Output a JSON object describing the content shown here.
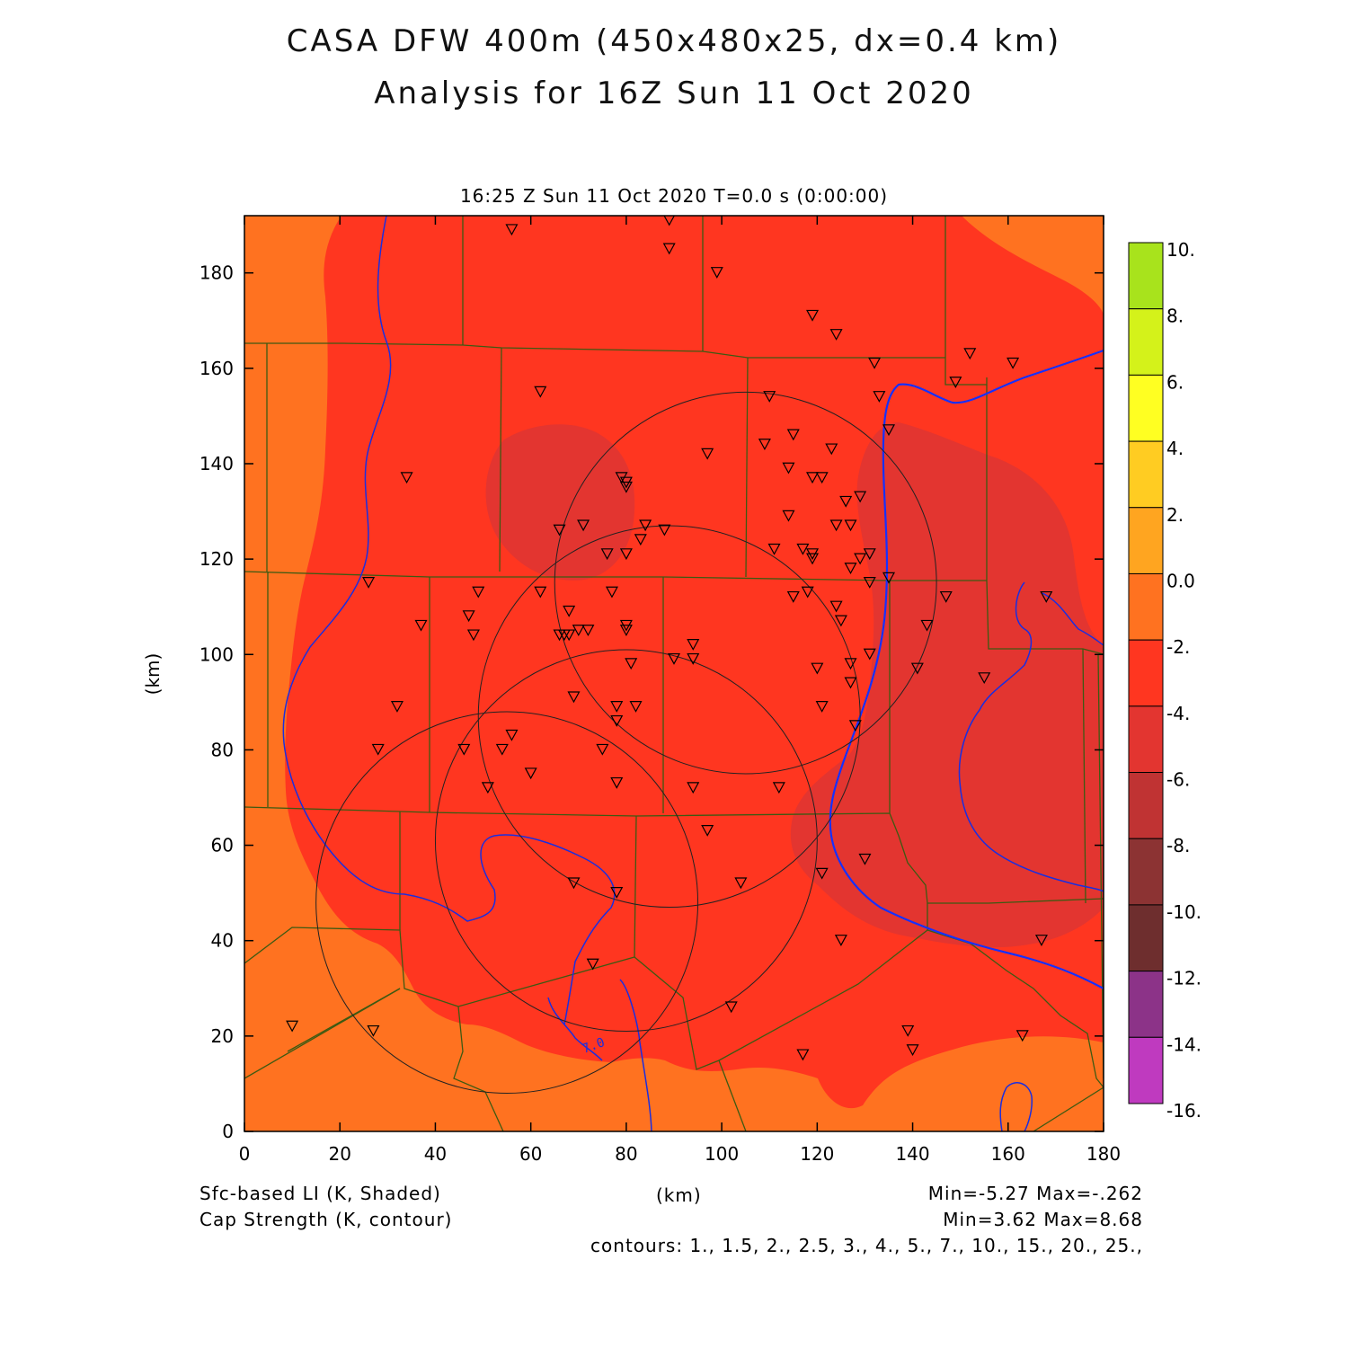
{
  "title": {
    "line1": "CASA DFW 400m (450x480x25, dx=0.4 km)",
    "line2": "Analysis for 16Z Sun 11 Oct 2020"
  },
  "subtitle": "16:25 Z Sun 11 Oct 2020   T=0.0 s (0:00:00)",
  "x_axis": {
    "label": "(km)",
    "ticks": [
      "0",
      "20",
      "40",
      "60",
      "80",
      "100",
      "120",
      "140",
      "160",
      "180"
    ]
  },
  "y_axis": {
    "label": "(km)",
    "ticks": [
      "0",
      "20",
      "40",
      "60",
      "80",
      "100",
      "120",
      "140",
      "160",
      "180"
    ]
  },
  "colorbar": {
    "labels": [
      "10.",
      "8.",
      "6.",
      "4.",
      "2.",
      "0.0",
      "-2.",
      "-4.",
      "-6.",
      "-8.",
      "-10.",
      "-12.",
      "-14.",
      "-16."
    ],
    "colors": [
      "#a8e31c",
      "#d4f21a",
      "#ffff22",
      "#ffcc22",
      "#ffa520",
      "#ff7220",
      "#ff3620",
      "#e33530",
      "#c03333",
      "#8c3333",
      "#6e2e2e",
      "#8c3388",
      "#bf3abf",
      "#dd3adc"
    ]
  },
  "footer": {
    "field1_label": "Sfc-based LI (K, Shaded)",
    "field1_range": "Min=-5.27 Max=-.262",
    "field2_label": "Cap Strength (K, contour)",
    "field2_range": "Min=3.62 Max=8.68",
    "contours": "contours: 1., 1.5, 2., 2.5, 3., 4., 5., 7., 10., 15., 20., 25.,",
    "xunit": "(km)"
  },
  "contour_label": "7.0",
  "map": {
    "radar_circles_km": [
      {
        "cx": 105,
        "cy": 115,
        "r": 40
      },
      {
        "cx": 89,
        "cy": 87,
        "r": 40
      },
      {
        "cx": 80,
        "cy": 61,
        "r": 40
      },
      {
        "cx": 55,
        "cy": 48,
        "r": 40
      }
    ],
    "stations_km": [
      [
        89,
        191
      ],
      [
        56,
        189
      ],
      [
        89,
        185
      ],
      [
        99,
        180
      ],
      [
        119,
        171
      ],
      [
        124,
        167
      ],
      [
        152,
        163
      ],
      [
        161,
        161
      ],
      [
        132,
        161
      ],
      [
        149,
        157
      ],
      [
        62,
        155
      ],
      [
        110,
        154
      ],
      [
        133,
        154
      ],
      [
        135,
        147
      ],
      [
        115,
        146
      ],
      [
        109,
        144
      ],
      [
        97,
        142
      ],
      [
        123,
        143
      ],
      [
        34,
        137
      ],
      [
        79,
        137
      ],
      [
        80,
        135
      ],
      [
        80,
        136
      ],
      [
        114,
        139
      ],
      [
        119,
        137
      ],
      [
        121,
        137
      ],
      [
        126,
        132
      ],
      [
        129,
        133
      ],
      [
        114,
        129
      ],
      [
        66,
        126
      ],
      [
        71,
        127
      ],
      [
        84,
        127
      ],
      [
        88,
        126
      ],
      [
        127,
        127
      ],
      [
        124,
        127
      ],
      [
        83,
        124
      ],
      [
        76,
        121
      ],
      [
        80,
        121
      ],
      [
        111,
        122
      ],
      [
        117,
        122
      ],
      [
        119,
        121
      ],
      [
        119,
        120
      ],
      [
        129,
        120
      ],
      [
        131,
        121
      ],
      [
        127,
        118
      ],
      [
        26,
        115
      ],
      [
        131,
        115
      ],
      [
        135,
        116
      ],
      [
        62,
        113
      ],
      [
        49,
        113
      ],
      [
        68,
        109
      ],
      [
        77,
        113
      ],
      [
        118,
        113
      ],
      [
        115,
        112
      ],
      [
        124,
        110
      ],
      [
        125,
        107
      ],
      [
        47,
        108
      ],
      [
        37,
        106
      ],
      [
        70,
        105
      ],
      [
        66,
        104
      ],
      [
        67,
        104
      ],
      [
        68,
        104
      ],
      [
        72,
        105
      ],
      [
        80,
        106
      ],
      [
        80,
        105
      ],
      [
        48,
        104
      ],
      [
        94,
        102
      ],
      [
        94,
        99
      ],
      [
        90,
        99
      ],
      [
        131,
        100
      ],
      [
        127,
        98
      ],
      [
        120,
        97
      ],
      [
        127,
        94
      ],
      [
        143,
        106
      ],
      [
        147,
        112
      ],
      [
        141,
        97
      ],
      [
        155,
        95
      ],
      [
        168,
        112
      ],
      [
        81,
        98
      ],
      [
        32,
        89
      ],
      [
        78,
        89
      ],
      [
        82,
        89
      ],
      [
        78,
        86
      ],
      [
        121,
        89
      ],
      [
        69,
        91
      ],
      [
        28,
        80
      ],
      [
        46,
        80
      ],
      [
        56,
        83
      ],
      [
        54,
        80
      ],
      [
        60,
        75
      ],
      [
        75,
        80
      ],
      [
        78,
        73
      ],
      [
        51,
        72
      ],
      [
        94,
        72
      ],
      [
        112,
        72
      ],
      [
        128,
        85
      ],
      [
        97,
        63
      ],
      [
        69,
        52
      ],
      [
        78,
        50
      ],
      [
        104,
        52
      ],
      [
        121,
        54
      ],
      [
        130,
        57
      ],
      [
        125,
        40
      ],
      [
        167,
        40
      ],
      [
        73,
        35
      ],
      [
        102,
        26
      ],
      [
        10,
        22
      ],
      [
        27,
        21
      ],
      [
        139,
        21
      ],
      [
        140,
        17
      ],
      [
        163,
        20
      ],
      [
        117,
        16
      ]
    ],
    "color_regions": [
      "-2. to 0.0",
      "-4. to -2.",
      "-6. to -4."
    ]
  }
}
